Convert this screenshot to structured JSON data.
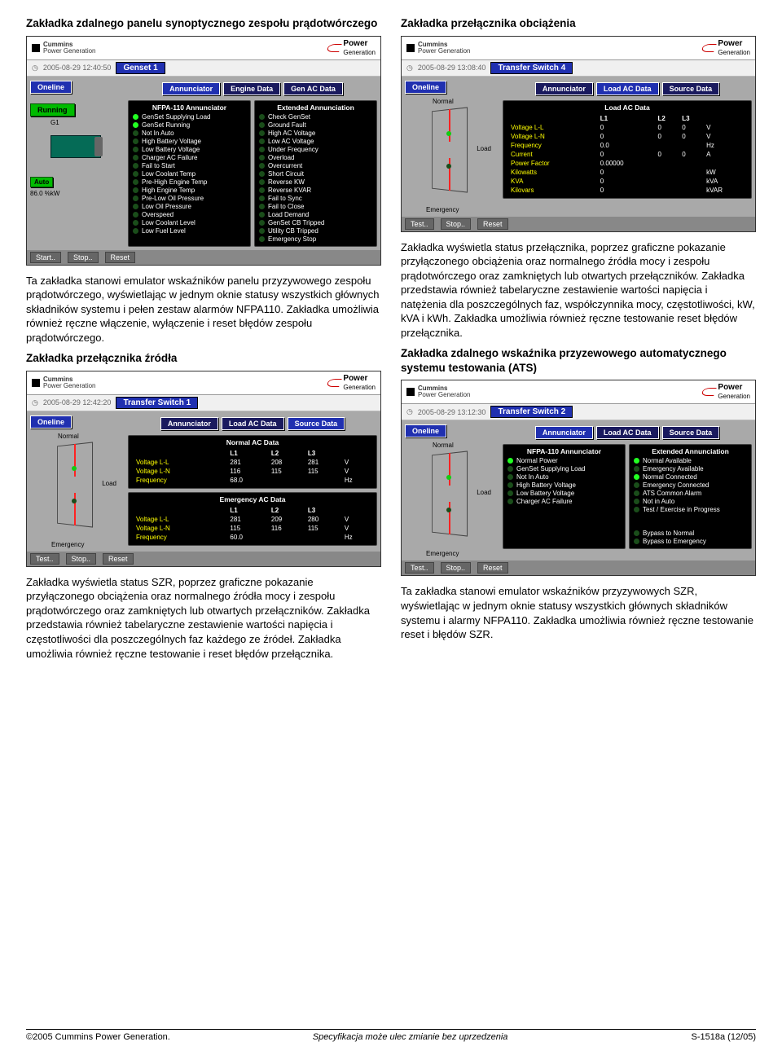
{
  "sec1": {
    "title": "Zakładka zdalnego panelu synoptycznego zespołu prądotwórczego",
    "body": "Ta zakładka stanowi emulator wskaźników panelu przyzywowego zespołu prądotwórczego, wyświetlając w jednym oknie statusy wszystkich głównych składników systemu i pełen zestaw alarmów NFPA110. Zakładka umożliwia również ręczne włączenie, wyłączenie i reset błędów zespołu prądotwórczego."
  },
  "sec2": {
    "title": "Zakładka przełącznika źródła",
    "body": "Zakładka wyświetla status SZR, poprzez graficzne pokazanie przyłączonego obciążenia oraz normalnego źródła mocy i zespołu prądotwórczego oraz zamkniętych lub otwartych przełączników. Zakładka przedstawia również tabelaryczne zestawienie wartości napięcia i częstotliwości dla poszczególnych faz każdego ze źródeł. Zakładka umożliwia również ręczne testowanie i reset błędów przełącznika."
  },
  "sec3": {
    "title": "Zakładka przełącznika obciążenia",
    "body": "Zakładka wyświetla status przełącznika, poprzez graficzne pokazanie przyłączonego obciążenia oraz normalnego źródła mocy i zespołu prądotwórczego oraz zamkniętych lub otwartych przełączników. Zakładka przedstawia również tabelaryczne zestawienie wartości napięcia i natężenia dla poszczególnych faz, współczynnika mocy, częstotliwości, kW, kVA i kWh. Zakładka umożliwia również ręczne testowanie reset błędów przełącznika."
  },
  "sec4": {
    "title": "Zakładka zdalnego wskaźnika przyzewowego automatycznego systemu testowania (ATS)",
    "body": "Ta zakładka stanowi emulator wskaźników przyzywowych SZR, wyświetlając w jednym oknie statusy wszystkich głównych składników systemu i alarmy NFPA110. Zakładka umożliwia również ręczne testowanie reset i błędów SZR."
  },
  "panel1": {
    "timestamp": "2005-08-29 12:40:50",
    "title": "Genset 1",
    "oneline": "Oneline",
    "running": "Running",
    "g1": "G1",
    "auto": "Auto",
    "pct": "86.0 %kW",
    "tabs": [
      "Annunciator",
      "Engine Data",
      "Gen AC Data"
    ],
    "col1": {
      "hdr": "NFPA-110 Annunciator",
      "items": [
        "GenSet Supplying Load",
        "GenSet Running",
        "Not In Auto",
        "High Battery Voltage",
        "Low Battery Voltage",
        "Charger AC Failure",
        "Fail to Start",
        "Low Coolant Temp",
        "Pre-High Engine Temp",
        "High Engine Temp",
        "Pre-Low Oil Pressure",
        "Low Oil Pressure",
        "Overspeed",
        "Low Coolant Level",
        "Low Fuel Level"
      ],
      "on": [
        0,
        1
      ]
    },
    "col2": {
      "hdr": "Extended Annunciation",
      "items": [
        "Check GenSet",
        "Ground Fault",
        "High AC Voltage",
        "Low AC Voltage",
        "Under Frequency",
        "Overload",
        "Overcurrent",
        "Short Circuit",
        "Reverse KW",
        "Reverse KVAR",
        "Fail to Sync",
        "Fail to Close",
        "Load Demand",
        "GenSet CB Tripped",
        "Utility CB Tripped",
        "Emergency Stop"
      ]
    },
    "btns": [
      "Start..",
      "Stop..",
      "Reset"
    ]
  },
  "panel2": {
    "timestamp": "2005-08-29 12:42:20",
    "title": "Transfer Switch 1",
    "tabs": [
      "Annunciator",
      "Load AC Data",
      "Source Data"
    ],
    "oneline": "Oneline",
    "normal": "Normal",
    "load": "Load",
    "emergency": "Emergency",
    "tbl1": {
      "hdr": "Normal AC Data",
      "cols": [
        "",
        "L1",
        "L2",
        "L3",
        ""
      ],
      "rows": [
        [
          "Voltage L-L",
          "281",
          "208",
          "281",
          "V"
        ],
        [
          "Voltage L-N",
          "116",
          "115",
          "115",
          "V"
        ],
        [
          "Frequency",
          "68.0",
          "",
          "",
          "Hz"
        ]
      ]
    },
    "tbl2": {
      "hdr": "Emergency AC Data",
      "rows": [
        [
          "Voltage L-L",
          "281",
          "209",
          "280",
          "V"
        ],
        [
          "Voltage L-N",
          "115",
          "116",
          "115",
          "V"
        ],
        [
          "Frequency",
          "60.0",
          "",
          "",
          "Hz"
        ]
      ]
    },
    "btns": [
      "Test..",
      "Stop..",
      "Reset"
    ]
  },
  "panel3": {
    "timestamp": "2005-08-29 13:08:40",
    "title": "Transfer Switch 4",
    "tabs": [
      "Annunciator",
      "Load AC Data",
      "Source Data"
    ],
    "oneline": "Oneline",
    "normal": "Normal",
    "load": "Load",
    "emergency": "Emergency",
    "tbl": {
      "hdr": "Load AC Data",
      "cols": [
        "",
        "L1",
        "L2",
        "L3",
        ""
      ],
      "rows": [
        [
          "Voltage L-L",
          "0",
          "0",
          "0",
          "V"
        ],
        [
          "Voltage L-N",
          "0",
          "0",
          "0",
          "V"
        ],
        [
          "Frequency",
          "0.0",
          "",
          "",
          "Hz"
        ],
        [
          "Current",
          "0",
          "0",
          "0",
          "A"
        ],
        [
          "Power Factor",
          "0.00000",
          "",
          "",
          ""
        ],
        [
          "Kilowatts",
          "0",
          "",
          "",
          "kW"
        ],
        [
          "KVA",
          "0",
          "",
          "",
          "kVA"
        ],
        [
          "Kilovars",
          "0",
          "",
          "",
          "kVAR"
        ]
      ]
    },
    "btns": [
      "Test..",
      "Stop..",
      "Reset"
    ]
  },
  "panel4": {
    "timestamp": "2005-08-29 13:12:30",
    "title": "Transfer Switch 2",
    "tabs": [
      "Annunciator",
      "Load AC Data",
      "Source Data"
    ],
    "oneline": "Oneline",
    "normal": "Normal",
    "load": "Load",
    "emergency": "Emergency",
    "col1": {
      "hdr": "NFPA-110 Annunciator",
      "items": [
        "Normal Power",
        "GenSet Supplying Load",
        "Not In Auto",
        "High Battery Voltage",
        "Low Battery Voltage",
        "Charger AC Failure"
      ],
      "on": [
        0
      ]
    },
    "col2": {
      "hdr": "Extended Annunciation",
      "items": [
        "Normal Available",
        "Emergency Available",
        "Normal Connected",
        "Emergency Connected",
        "ATS Common Alarm",
        "Not in Auto",
        "Test / Exercise in Progress"
      ],
      "on": [
        0,
        2
      ],
      "extra": [
        "Bypass to Normal",
        "Bypass to Emergency"
      ]
    },
    "btns": [
      "Test..",
      "Stop..",
      "Reset"
    ]
  },
  "logo": {
    "brand": "Power",
    "sub": "Generation",
    "cummins": "Cummins"
  },
  "footer": {
    "left": "©2005 Cummins Power Generation.",
    "center": "Specyfikacja może ulec zmianie bez uprzedzenia",
    "right": "S-1518a (12/05)"
  },
  "colors": {
    "blue": "#2030b0",
    "green": "#00bb00",
    "red": "#ff2222",
    "darkgreen": "#056b56",
    "grey": "#a9a9a9",
    "yellow": "#ffff00"
  }
}
